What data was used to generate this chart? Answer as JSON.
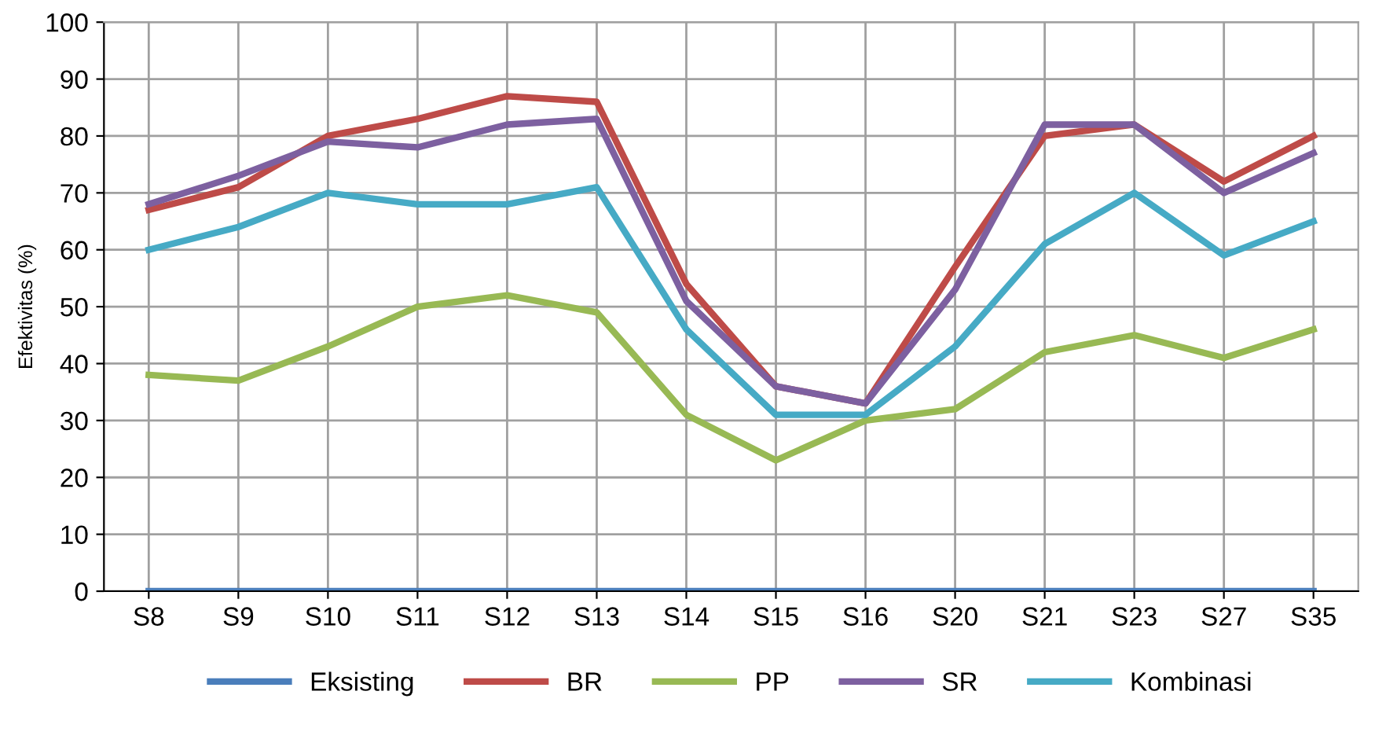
{
  "chart_data": {
    "type": "line",
    "ylabel": "Efektivitas (%)",
    "categories": [
      "S8",
      "S9",
      "S10",
      "S11",
      "S12",
      "S13",
      "S14",
      "S15",
      "S16",
      "S20",
      "S21",
      "S23",
      "S27",
      "S35"
    ],
    "series": [
      {
        "name": "Eksisting",
        "color": "#4a7ebb",
        "values": [
          0,
          0,
          0,
          0,
          0,
          0,
          0,
          0,
          0,
          0,
          0,
          0,
          0,
          0
        ]
      },
      {
        "name": "BR",
        "color": "#be4b48",
        "values": [
          67,
          71,
          80,
          83,
          87,
          86,
          54,
          36,
          33,
          57,
          80,
          82,
          72,
          80
        ]
      },
      {
        "name": "PP",
        "color": "#98b954",
        "values": [
          38,
          37,
          43,
          50,
          52,
          49,
          31,
          23,
          30,
          32,
          42,
          45,
          41,
          46
        ]
      },
      {
        "name": "SR",
        "color": "#7d60a0",
        "values": [
          68,
          73,
          79,
          78,
          82,
          83,
          51,
          36,
          33,
          53,
          82,
          82,
          70,
          77
        ]
      },
      {
        "name": "Kombinasi",
        "color": "#46aac5",
        "values": [
          60,
          64,
          70,
          68,
          68,
          71,
          46,
          31,
          31,
          43,
          61,
          70,
          59,
          65
        ]
      }
    ],
    "ylim": [
      0,
      100
    ],
    "yticks": [
      0,
      10,
      20,
      30,
      40,
      50,
      60,
      70,
      80,
      90,
      100
    ],
    "grid": true,
    "legend": "bottom",
    "marker": "none",
    "line_style": "solid"
  }
}
